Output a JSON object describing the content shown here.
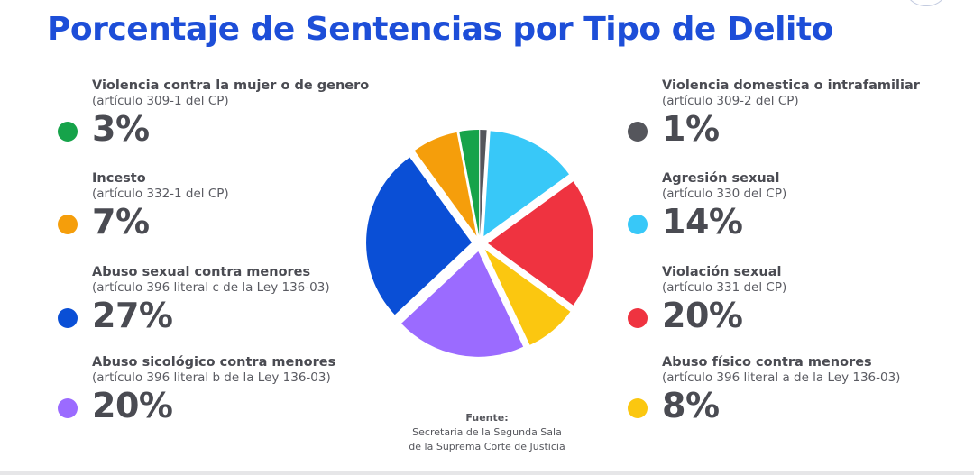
{
  "title": "Porcentaje de Sentencias por Tipo de Delito",
  "source": {
    "label": "Fuente:",
    "line1": "Secretaria de la Segunda Sala",
    "line2": "de la Suprema Corte de Justicia"
  },
  "chart_data": {
    "type": "pie",
    "title": "Porcentaje de Sentencias por Tipo de Delito",
    "unit": "%",
    "slices": [
      {
        "name": "Violencia contra la mujer o de genero",
        "ref": "(artículo 309-1 del CP)",
        "value": 3,
        "label": "3%",
        "color": "#16a34a"
      },
      {
        "name": "Incesto",
        "ref": "(artículo 332-1 del CP)",
        "value": 7,
        "label": "7%",
        "color": "#f59e0b"
      },
      {
        "name": "Abuso sexual contra menores",
        "ref": "(artículo 396 literal c de la Ley 136-03)",
        "value": 27,
        "label": "27%",
        "color": "#0a4fd6"
      },
      {
        "name": "Abuso sicológico contra menores",
        "ref": "(artículo 396 literal b de la Ley 136-03)",
        "value": 20,
        "label": "20%",
        "color": "#9b6bff"
      },
      {
        "name": "Violencia domestica o intrafamiliar",
        "ref": "(artículo 309-2 del CP)",
        "value": 1,
        "label": "1%",
        "color": "#55565c"
      },
      {
        "name": "Agresión sexual",
        "ref": "(artículo 330 del CP)",
        "value": 14,
        "label": "14%",
        "color": "#38c8f8"
      },
      {
        "name": "Violación sexual",
        "ref": "(artículo 331 del CP)",
        "value": 20,
        "label": "20%",
        "color": "#ef3340"
      },
      {
        "name": "Abuso físico contra menores",
        "ref": "(artículo 396 literal a de la Ley 136-03)",
        "value": 8,
        "label": "8%",
        "color": "#fbc710"
      }
    ],
    "pie_order": [
      4,
      5,
      6,
      7,
      3,
      2,
      1,
      0
    ],
    "legend_placement": "left-and-right"
  }
}
